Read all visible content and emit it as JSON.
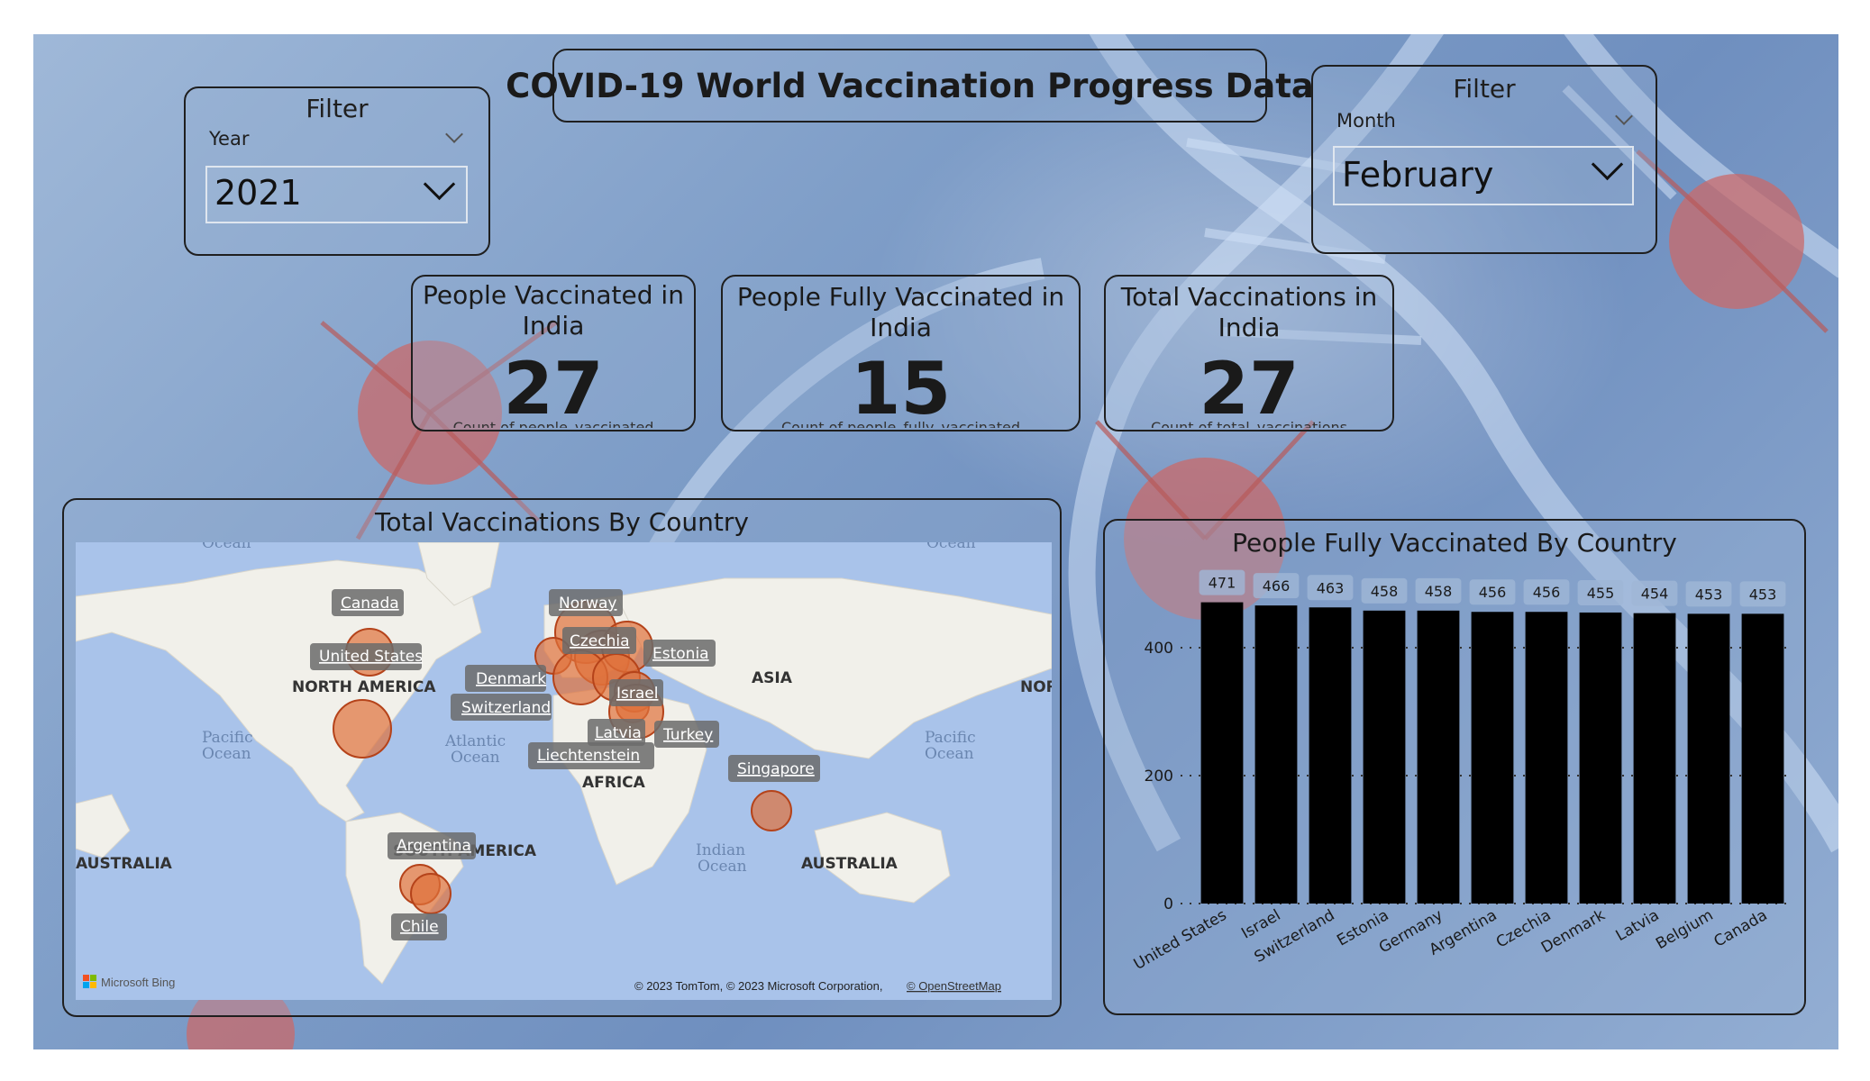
{
  "header": {
    "title": "COVID-19 World Vaccination Progress Data"
  },
  "filters": {
    "year": {
      "title": "Filter",
      "label": "Year",
      "value": "2021"
    },
    "month": {
      "title": "Filter",
      "label": "Month",
      "value": "February"
    }
  },
  "cards": [
    {
      "title_line1": "People Vaccinated in",
      "title_line2": "India",
      "value": "27",
      "subtitle": "Count of people_vaccinated"
    },
    {
      "title_line1": "People Fully Vaccinated in",
      "title_line2": "India",
      "value": "15",
      "subtitle": "Count of people_fully_vaccinated"
    },
    {
      "title_line1": "Total Vaccinations in",
      "title_line2": "India",
      "value": "27",
      "subtitle": "Count of total_vaccinations"
    }
  ],
  "map": {
    "title": "Total Vaccinations By Country",
    "countries": [
      "Canada",
      "United States",
      "Norway",
      "Czechia",
      "Estonia",
      "Denmark",
      "Israel",
      "Switzerland",
      "Latvia",
      "Turkey",
      "Liechtenstein",
      "Singapore",
      "Argentina",
      "Chile"
    ],
    "continents": [
      "NORTH AMERICA",
      "ASIA",
      "AFRICA",
      "SOUTH AMERICA",
      "AUSTRALIA",
      "AUSTRALIA"
    ],
    "oceans": [
      "Pacific",
      "Ocean",
      "Atlantic",
      "Ocean",
      "Pacific",
      "Ocean",
      "Indian",
      "Ocean",
      "Ocean",
      "Ocean"
    ],
    "edge_label": "NOR",
    "attribution": "© 2023 TomTom, © 2023 Microsoft Corporation, ",
    "attribution_link": "© OpenStreetMap",
    "provider": "Microsoft Bing"
  },
  "chart_data": {
    "type": "bar",
    "title": "People Fully Vaccinated By Country",
    "categories": [
      "United States",
      "Israel",
      "Switzerland",
      "Estonia",
      "Germany",
      "Argentina",
      "Czechia",
      "Denmark",
      "Latvia",
      "Belgium",
      "Canada"
    ],
    "values": [
      471,
      466,
      463,
      458,
      458,
      456,
      456,
      455,
      454,
      453,
      453
    ],
    "ylim": [
      0,
      500
    ],
    "yticks": [
      0,
      200,
      400
    ],
    "xlabel": "",
    "ylabel": "",
    "bar_color": "#000000",
    "grid": true
  },
  "colors": {
    "bubble": "#e0703a",
    "bar": "#000000",
    "land": "#f1f0ea",
    "water": "#a9c3ea"
  }
}
